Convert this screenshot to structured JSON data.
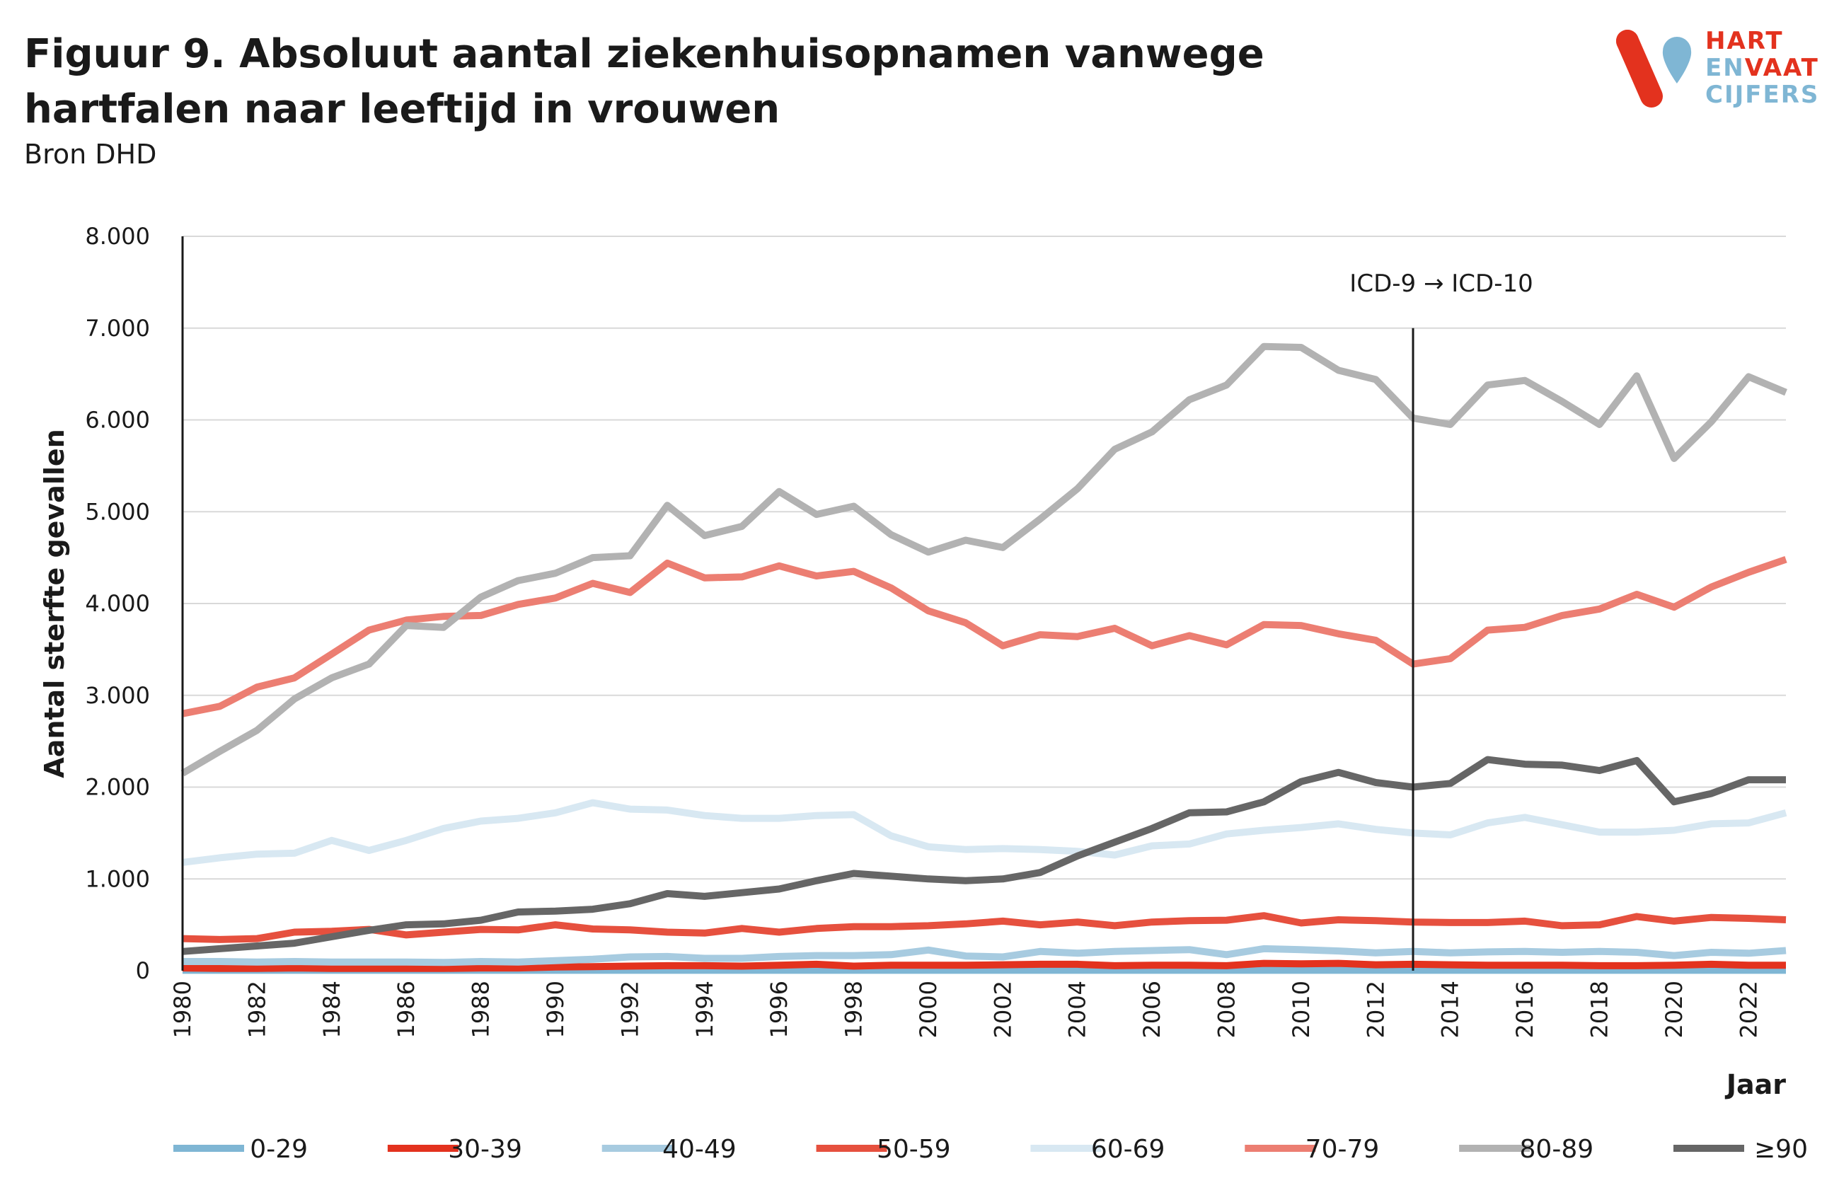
{
  "header": {
    "title": "Figuur 9. Absoluut aantal ziekenhuisopnamen vanwege hartfalen naar leeftijd in vrouwen",
    "source": "Bron DHD"
  },
  "logo": {
    "line1": "HART",
    "line2a": "EN",
    "line2b": "VAAT",
    "line3": "CIJFERS",
    "colors": {
      "red": "#e3321e",
      "blue": "#7fb6d4",
      "red_text": "#e3321e",
      "blue_text": "#7fb6d4"
    }
  },
  "chart_data": {
    "type": "line",
    "title": "Figuur 9. Absoluut aantal ziekenhuisopnamen vanwege hartfalen naar leeftijd in vrouwen",
    "xlabel": "Jaar",
    "ylabel": "Aantal sterfte gevallen",
    "xlim": [
      1980,
      2023
    ],
    "ylim": [
      0,
      8000
    ],
    "yticks": [
      0,
      1000,
      2000,
      3000,
      4000,
      5000,
      6000,
      7000,
      8000
    ],
    "ytick_labels": [
      "0",
      "1.000",
      "2.000",
      "3.000",
      "4.000",
      "5.000",
      "6.000",
      "7.000",
      "8.000"
    ],
    "xticks": [
      1980,
      1982,
      1984,
      1986,
      1988,
      1990,
      1992,
      1994,
      1996,
      1998,
      2000,
      2002,
      2004,
      2006,
      2008,
      2010,
      2012,
      2014,
      2016,
      2018,
      2020,
      2022
    ],
    "grid": "horizontal",
    "legend_position": "bottom",
    "annotation": {
      "x": 2013,
      "text": "ICD-9 → ICD-10"
    },
    "x": [
      1980,
      1981,
      1982,
      1983,
      1984,
      1985,
      1986,
      1987,
      1988,
      1989,
      1990,
      1991,
      1992,
      1993,
      1994,
      1995,
      1996,
      1997,
      1998,
      1999,
      2000,
      2001,
      2002,
      2003,
      2004,
      2005,
      2006,
      2007,
      2008,
      2009,
      2010,
      2011,
      2012,
      2013,
      2014,
      2015,
      2016,
      2017,
      2018,
      2019,
      2020,
      2021,
      2022,
      2023
    ],
    "series": [
      {
        "name": "0-29",
        "color": "#7fb6d4",
        "values": [
          5,
          5,
          5,
          5,
          5,
          5,
          5,
          5,
          5,
          5,
          5,
          5,
          5,
          5,
          5,
          5,
          5,
          5,
          5,
          5,
          5,
          5,
          5,
          5,
          5,
          5,
          5,
          5,
          5,
          5,
          5,
          5,
          5,
          5,
          5,
          5,
          5,
          5,
          5,
          5,
          5,
          5,
          5,
          5
        ]
      },
      {
        "name": "30-39",
        "color": "#e3321e",
        "values": [
          30,
          25,
          25,
          30,
          25,
          25,
          25,
          25,
          30,
          30,
          40,
          45,
          50,
          55,
          55,
          50,
          60,
          70,
          50,
          60,
          60,
          60,
          65,
          70,
          70,
          55,
          60,
          60,
          55,
          80,
          75,
          80,
          65,
          70,
          65,
          60,
          60,
          60,
          55,
          55,
          60,
          70,
          60,
          60
        ]
      },
      {
        "name": "40-49",
        "color": "#a7cbe0",
        "values": [
          100,
          100,
          95,
          100,
          95,
          95,
          95,
          90,
          100,
          95,
          110,
          125,
          150,
          155,
          135,
          135,
          155,
          165,
          165,
          175,
          225,
          160,
          150,
          210,
          190,
          210,
          220,
          230,
          175,
          240,
          230,
          215,
          195,
          210,
          195,
          205,
          210,
          200,
          210,
          200,
          165,
          200,
          190,
          220
        ]
      },
      {
        "name": "50-59",
        "color": "#e6503e",
        "values": [
          350,
          340,
          350,
          420,
          430,
          450,
          390,
          420,
          450,
          445,
          500,
          455,
          445,
          420,
          410,
          460,
          420,
          460,
          480,
          480,
          490,
          510,
          540,
          500,
          530,
          490,
          530,
          545,
          550,
          600,
          520,
          555,
          545,
          530,
          525,
          525,
          540,
          490,
          500,
          590,
          540,
          580,
          570,
          555
        ]
      },
      {
        "name": "60-69",
        "color": "#d8e8f2",
        "values": [
          1180,
          1230,
          1270,
          1280,
          1420,
          1310,
          1420,
          1550,
          1630,
          1660,
          1720,
          1830,
          1760,
          1750,
          1690,
          1660,
          1660,
          1690,
          1700,
          1470,
          1350,
          1320,
          1330,
          1320,
          1300,
          1260,
          1360,
          1380,
          1490,
          1530,
          1560,
          1600,
          1540,
          1500,
          1480,
          1610,
          1670,
          1590,
          1510,
          1510,
          1530,
          1600,
          1610,
          1720
        ]
      },
      {
        "name": "70-79",
        "color": "#ec7e72",
        "values": [
          2800,
          2880,
          3090,
          3190,
          3450,
          3710,
          3820,
          3860,
          3870,
          3990,
          4060,
          4220,
          4120,
          4440,
          4280,
          4290,
          4410,
          4300,
          4350,
          4170,
          3920,
          3790,
          3540,
          3660,
          3640,
          3730,
          3540,
          3650,
          3550,
          3770,
          3760,
          3670,
          3600,
          3340,
          3400,
          3710,
          3740,
          3870,
          3940,
          4100,
          3960,
          4180,
          4340,
          4480
        ]
      },
      {
        "name": "80-89",
        "color": "#b2b2b2",
        "values": [
          2150,
          2390,
          2620,
          2960,
          3190,
          3340,
          3760,
          3740,
          4070,
          4250,
          4330,
          4500,
          4520,
          5070,
          4740,
          4840,
          5220,
          4970,
          5060,
          4750,
          4560,
          4690,
          4610,
          4920,
          5250,
          5680,
          5870,
          6220,
          6380,
          6800,
          6790,
          6540,
          6440,
          6020,
          5950,
          6380,
          6430,
          6200,
          5950,
          6480,
          5580,
          5980,
          6470,
          6300
        ]
      },
      {
        "name": "≥90",
        "color": "#666666",
        "values": [
          210,
          240,
          270,
          300,
          370,
          440,
          500,
          510,
          550,
          640,
          650,
          670,
          730,
          840,
          810,
          850,
          890,
          980,
          1060,
          1030,
          1000,
          980,
          1000,
          1070,
          1250,
          1400,
          1550,
          1720,
          1730,
          1840,
          2060,
          2160,
          2050,
          2000,
          2040,
          2300,
          2250,
          2240,
          2180,
          2290,
          1840,
          1930,
          2080,
          2080
        ]
      }
    ]
  }
}
